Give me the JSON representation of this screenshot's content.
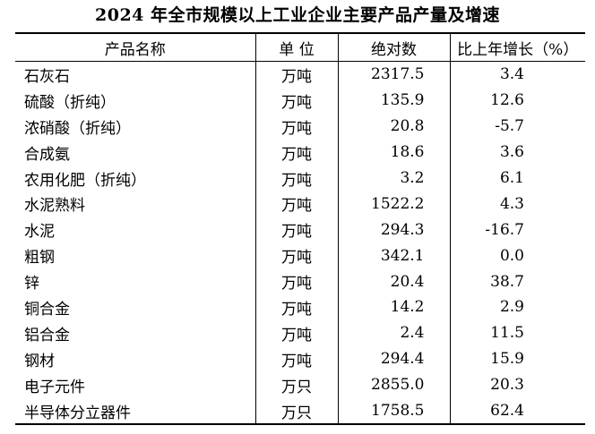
{
  "title": "2024 年全市规模以上工业企业主要产品产量及增速",
  "table": {
    "headers": [
      "产品名称",
      "单 位",
      "绝对数",
      "比上年增长（%）"
    ],
    "rows": [
      {
        "name": "石灰石",
        "unit": "万吨",
        "value": "2317.5",
        "growth": "3.4"
      },
      {
        "name": "硫酸（折纯）",
        "unit": "万吨",
        "value": "135.9",
        "growth": "12.6"
      },
      {
        "name": "浓硝酸（折纯）",
        "unit": "万吨",
        "value": "20.8",
        "growth": "-5.7"
      },
      {
        "name": "合成氨",
        "unit": "万吨",
        "value": "18.6",
        "growth": "3.6"
      },
      {
        "name": "农用化肥（折纯）",
        "unit": "万吨",
        "value": "3.2",
        "growth": "6.1"
      },
      {
        "name": "水泥熟料",
        "unit": "万吨",
        "value": "1522.2",
        "growth": "4.3"
      },
      {
        "name": "水泥",
        "unit": "万吨",
        "value": "294.3",
        "growth": "-16.7"
      },
      {
        "name": "粗钢",
        "unit": "万吨",
        "value": "342.1",
        "growth": "0.0"
      },
      {
        "name": "锌",
        "unit": "万吨",
        "value": "20.4",
        "growth": "38.7"
      },
      {
        "name": "铜合金",
        "unit": "万吨",
        "value": "14.2",
        "growth": "2.9"
      },
      {
        "name": "铝合金",
        "unit": "万吨",
        "value": "2.4",
        "growth": "11.5"
      },
      {
        "name": "钢材",
        "unit": "万吨",
        "value": "294.4",
        "growth": "15.9"
      },
      {
        "name": "电子元件",
        "unit": "万只",
        "value": "2855.0",
        "growth": "20.3"
      },
      {
        "name": "半导体分立器件",
        "unit": "万只",
        "value": "1758.5",
        "growth": "62.4"
      }
    ]
  },
  "chart_data": {
    "type": "table",
    "title": "2024 年全市规模以上工业企业主要产品产量及增速",
    "columns": [
      "产品名称",
      "单 位",
      "绝对数",
      "比上年增长（%）"
    ],
    "rows": [
      [
        "石灰石",
        "万吨",
        2317.5,
        3.4
      ],
      [
        "硫酸（折纯）",
        "万吨",
        135.9,
        12.6
      ],
      [
        "浓硝酸（折纯）",
        "万吨",
        20.8,
        -5.7
      ],
      [
        "合成氨",
        "万吨",
        18.6,
        3.6
      ],
      [
        "农用化肥（折纯）",
        "万吨",
        3.2,
        6.1
      ],
      [
        "水泥熟料",
        "万吨",
        1522.2,
        4.3
      ],
      [
        "水泥",
        "万吨",
        294.3,
        -16.7
      ],
      [
        "粗钢",
        "万吨",
        342.1,
        0.0
      ],
      [
        "锌",
        "万吨",
        20.4,
        38.7
      ],
      [
        "铜合金",
        "万吨",
        14.2,
        2.9
      ],
      [
        "铝合金",
        "万吨",
        2.4,
        11.5
      ],
      [
        "钢材",
        "万吨",
        294.4,
        15.9
      ],
      [
        "电子元件",
        "万只",
        2855.0,
        20.3
      ],
      [
        "半导体分立器件",
        "万只",
        1758.5,
        62.4
      ]
    ]
  },
  "colors": {
    "text": "#000000",
    "border": "#000000",
    "background": "#ffffff"
  }
}
